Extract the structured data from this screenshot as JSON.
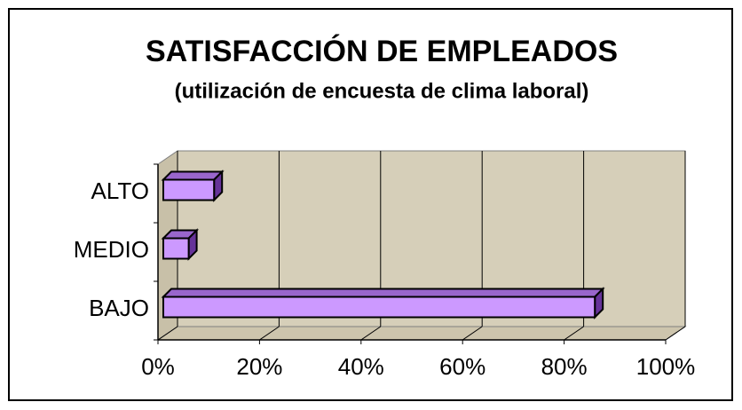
{
  "chart_data": {
    "type": "bar3d_horizontal",
    "title": "SATISFACCIÓN DE EMPLEADOS",
    "subtitle": "(utilización de encuesta de clima laboral)",
    "categories": [
      "ALTO",
      "MEDIO",
      "BAJO"
    ],
    "values": [
      10,
      5,
      85
    ],
    "color": "#cc99ff",
    "xlim": [
      0,
      100
    ],
    "xticks": [
      {
        "value": 0,
        "label": "0%"
      },
      {
        "value": 20,
        "label": "20%"
      },
      {
        "value": 40,
        "label": "40%"
      },
      {
        "value": 60,
        "label": "60%"
      },
      {
        "value": 80,
        "label": "80%"
      },
      {
        "value": 100,
        "label": "100%"
      }
    ],
    "grid": true
  }
}
